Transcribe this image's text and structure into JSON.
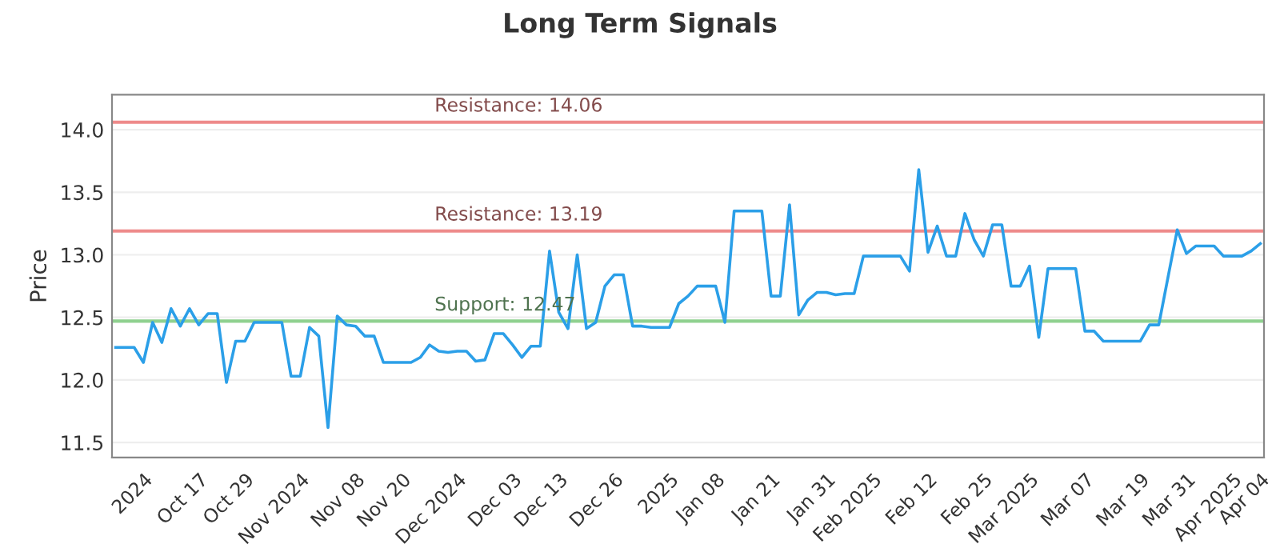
{
  "chart_data": {
    "type": "line",
    "title": "Long Term Signals",
    "ylabel": "Price",
    "categories": [
      null,
      null,
      null,
      "2024",
      null,
      null,
      null,
      null,
      null,
      "Oct 17",
      null,
      null,
      null,
      null,
      "Oct 29",
      null,
      null,
      null,
      null,
      null,
      "Nov 2024",
      null,
      null,
      null,
      null,
      null,
      "Nov 08",
      null,
      null,
      null,
      null,
      "Nov 20",
      null,
      null,
      null,
      null,
      null,
      "Dec 2024",
      null,
      null,
      null,
      null,
      null,
      "Dec 03",
      null,
      null,
      null,
      null,
      "Dec 13",
      null,
      null,
      null,
      null,
      null,
      "Dec 26",
      null,
      null,
      null,
      null,
      null,
      "2025",
      null,
      null,
      null,
      null,
      "Jan 08",
      null,
      null,
      null,
      null,
      null,
      "Jan 21",
      null,
      null,
      null,
      null,
      null,
      "Jan 31",
      null,
      null,
      null,
      null,
      "Feb 2025",
      null,
      null,
      null,
      null,
      null,
      "Feb 12",
      null,
      null,
      null,
      null,
      null,
      "Feb 25",
      null,
      null,
      null,
      null,
      "Mar 2025",
      null,
      null,
      null,
      null,
      null,
      "Mar 07",
      null,
      null,
      null,
      null,
      null,
      "Mar 19",
      null,
      null,
      null,
      null,
      "Mar 31",
      null,
      null,
      null,
      null,
      "Apr 2025",
      null,
      null,
      "Apr 04"
    ],
    "series": [
      {
        "color": "#2b9fe8",
        "values": [
          12.26,
          12.26,
          12.26,
          12.14,
          12.46,
          12.3,
          12.57,
          12.43,
          12.57,
          12.44,
          12.53,
          12.53,
          11.98,
          12.31,
          12.31,
          12.46,
          12.46,
          12.46,
          12.46,
          12.03,
          12.03,
          12.42,
          12.35,
          11.62,
          12.51,
          12.44,
          12.43,
          12.35,
          12.35,
          12.14,
          12.14,
          12.14,
          12.14,
          12.18,
          12.28,
          12.23,
          12.22,
          12.23,
          12.23,
          12.15,
          12.16,
          12.37,
          12.37,
          12.28,
          12.18,
          12.27,
          12.27,
          13.03,
          12.54,
          12.41,
          13.0,
          12.41,
          12.46,
          12.75,
          12.84,
          12.84,
          12.43,
          12.43,
          12.42,
          12.42,
          12.42,
          12.61,
          12.67,
          12.75,
          12.75,
          12.75,
          12.46,
          13.35,
          13.35,
          13.35,
          13.35,
          12.67,
          12.67,
          13.4,
          12.52,
          12.64,
          12.7,
          12.7,
          12.68,
          12.69,
          12.69,
          12.99,
          12.99,
          12.99,
          12.99,
          12.99,
          12.87,
          13.68,
          13.02,
          13.23,
          12.99,
          12.99,
          13.33,
          13.12,
          12.99,
          13.24,
          13.24,
          12.75,
          12.75,
          12.91,
          12.34,
          12.89,
          12.89,
          12.89,
          12.89,
          12.39,
          12.39,
          12.31,
          12.31,
          12.31,
          12.31,
          12.31,
          12.44,
          12.44,
          12.82,
          13.2,
          13.01,
          13.07,
          13.07,
          13.07,
          12.99,
          12.99,
          12.99,
          13.03,
          13.09
        ]
      }
    ],
    "ylim": [
      11.38,
      14.28
    ],
    "yticks": [
      11.5,
      {
        "value": 12,
        "label": "12.0"
      },
      12.5,
      {
        "value": 13,
        "label": "13.0"
      },
      13.5,
      {
        "value": 14,
        "label": "14.0"
      }
    ],
    "grid": "y",
    "legend": false,
    "marker": "none",
    "line_style": "solid",
    "ref_lines": [
      {
        "axis": "y",
        "value": 14.06,
        "label": "Resistance: 14.06",
        "color": "#ee8a8a"
      },
      {
        "axis": "y",
        "value": 13.19,
        "label": "Resistance: 13.19",
        "color": "#ee8a8a"
      },
      {
        "axis": "y",
        "value": 12.47,
        "label": "Support: 12.47",
        "color": "#8fd18f"
      }
    ]
  }
}
